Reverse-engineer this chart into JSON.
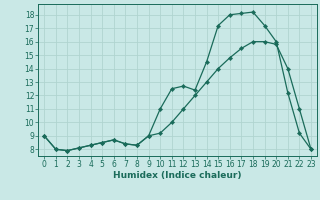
{
  "xlabel": "Humidex (Indice chaleur)",
  "bg_color": "#c9e8e6",
  "grid_color": "#b0d4d0",
  "line_color": "#1a6b5a",
  "xlim": [
    -0.5,
    23.5
  ],
  "ylim": [
    7.5,
    18.8
  ],
  "xticks": [
    0,
    1,
    2,
    3,
    4,
    5,
    6,
    7,
    8,
    9,
    10,
    11,
    12,
    13,
    14,
    15,
    16,
    17,
    18,
    19,
    20,
    21,
    22,
    23
  ],
  "yticks": [
    8,
    9,
    10,
    11,
    12,
    13,
    14,
    15,
    16,
    17,
    18
  ],
  "line1_x": [
    0,
    1,
    2,
    3,
    4,
    5,
    6,
    7,
    8,
    9,
    10,
    11,
    12,
    13,
    14,
    15,
    16,
    17,
    18,
    19,
    20,
    21,
    22,
    23
  ],
  "line1_y": [
    9.0,
    8.0,
    7.9,
    8.1,
    8.3,
    8.5,
    8.7,
    8.4,
    8.3,
    9.0,
    11.0,
    12.5,
    12.7,
    12.4,
    14.5,
    17.2,
    18.0,
    18.1,
    18.2,
    17.2,
    16.0,
    12.2,
    9.2,
    8.0
  ],
  "line2_x": [
    0,
    1,
    2,
    3,
    4,
    5,
    6,
    7,
    8,
    9,
    10,
    11,
    12,
    13,
    14,
    15,
    16,
    17,
    18,
    19,
    20,
    21,
    22,
    23
  ],
  "line2_y": [
    9.0,
    8.0,
    7.9,
    8.1,
    8.3,
    8.5,
    8.7,
    8.4,
    8.3,
    9.0,
    9.2,
    10.0,
    11.0,
    12.0,
    13.0,
    14.0,
    14.8,
    15.5,
    16.0,
    16.0,
    15.8,
    14.0,
    11.0,
    8.0
  ],
  "tick_fontsize": 5.5,
  "xlabel_fontsize": 6.5,
  "marker_size": 2.2,
  "line_width": 0.9
}
